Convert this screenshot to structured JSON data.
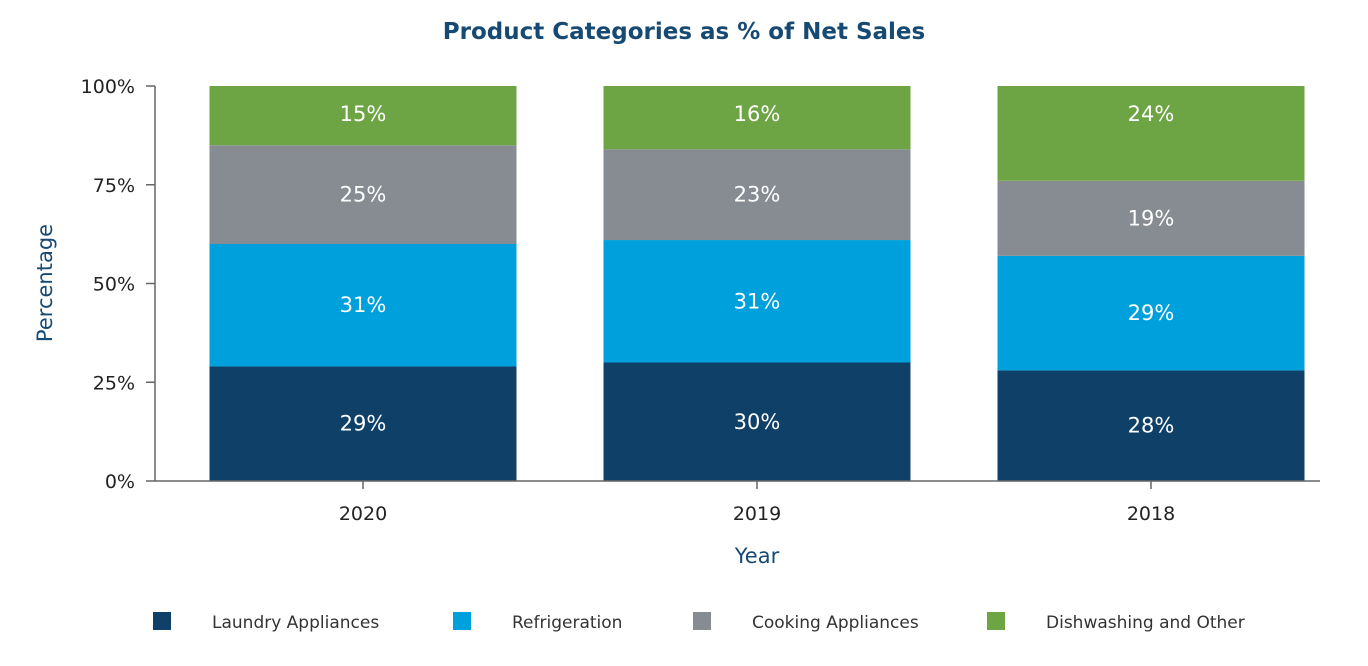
{
  "chart_data": {
    "type": "bar",
    "stacked": true,
    "title": "Product Categories as % of Net Sales",
    "xlabel": "Year",
    "ylabel": "Percentage",
    "categories": [
      "2020",
      "2019",
      "2018"
    ],
    "ylim": [
      0,
      100
    ],
    "yticks": [
      0,
      25,
      50,
      75,
      100
    ],
    "ytick_labels": [
      "0%",
      "25%",
      "50%",
      "75%",
      "100%"
    ],
    "legend_position": "bottom",
    "series": [
      {
        "name": "Laundry Appliances",
        "color": "#0f4168",
        "values": [
          29,
          30,
          28
        ],
        "labels": [
          "29%",
          "30%",
          "28%"
        ]
      },
      {
        "name": "Refrigeration",
        "color": "#00a0dc",
        "values": [
          31,
          31,
          29
        ],
        "labels": [
          "31%",
          "31%",
          "29%"
        ]
      },
      {
        "name": "Cooking Appliances",
        "color": "#878c92",
        "values": [
          25,
          23,
          19
        ],
        "labels": [
          "25%",
          "23%",
          "19%"
        ]
      },
      {
        "name": "Dishwashing and Other",
        "color": "#6da544",
        "values": [
          15,
          16,
          24
        ],
        "labels": [
          "15%",
          "16%",
          "24%"
        ]
      }
    ]
  }
}
